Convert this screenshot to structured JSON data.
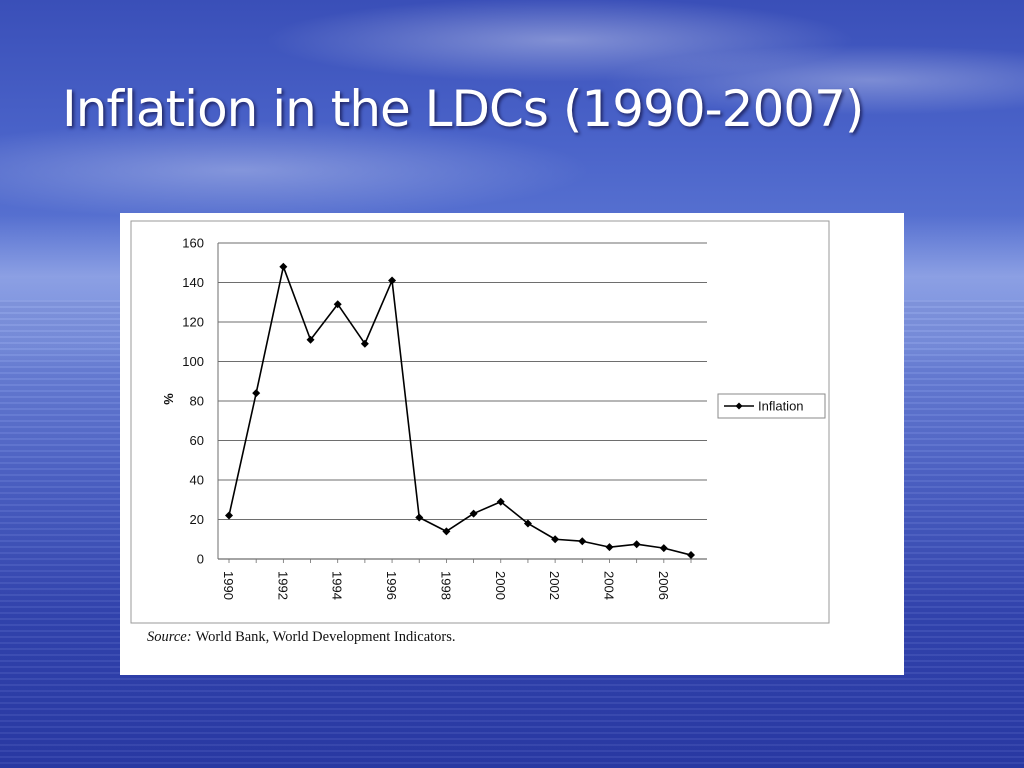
{
  "slide": {
    "title": "Inflation in the LDCs (1990-2007)"
  },
  "source": {
    "label": "Source:",
    "text": "World Bank, World Development Indicators."
  },
  "chart_data": {
    "type": "line",
    "title": "",
    "xlabel": "",
    "ylabel": "%",
    "x": [
      1990,
      1991,
      1992,
      1993,
      1994,
      1995,
      1996,
      1997,
      1998,
      1999,
      2000,
      2001,
      2002,
      2003,
      2004,
      2005,
      2006,
      2007
    ],
    "x_tick_labels": [
      "1990",
      "1992",
      "1994",
      "1996",
      "1998",
      "2000",
      "2002",
      "2004",
      "2006"
    ],
    "y_ticks": [
      0,
      20,
      40,
      60,
      80,
      100,
      120,
      140,
      160
    ],
    "ylim": [
      0,
      160
    ],
    "grid": "horizontal",
    "legend_position": "right",
    "series": [
      {
        "name": "Inflation",
        "color": "#000000",
        "marker": "diamond",
        "values": [
          22,
          84,
          148,
          111,
          129,
          109,
          141,
          21,
          14,
          23,
          29,
          18,
          10,
          9,
          6,
          7.5,
          5.5,
          2
        ]
      }
    ]
  }
}
